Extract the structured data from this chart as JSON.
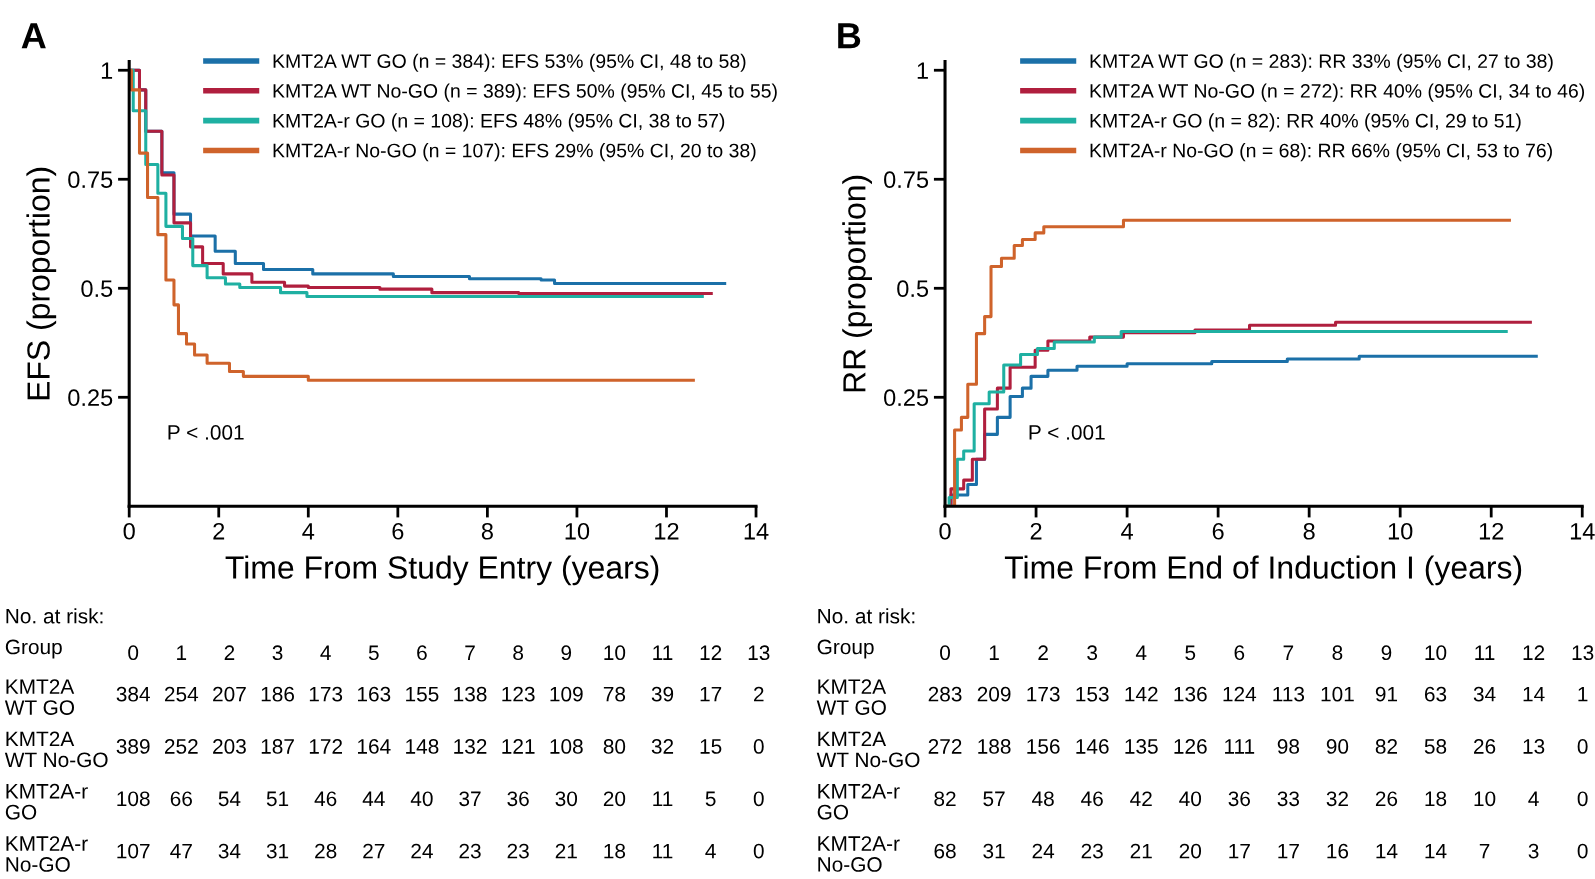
{
  "chart_data": [
    {
      "type": "step",
      "title": "A",
      "xlabel": "Time From Study Entry (years)",
      "ylabel": "EFS (proportion)",
      "xlim": [
        0,
        14
      ],
      "xticks": [
        0,
        2,
        4,
        6,
        8,
        10,
        12,
        14
      ],
      "ylim": [
        0,
        1.02
      ],
      "yticks": [
        0.25,
        0.5,
        0.75,
        1
      ],
      "legend": "top right",
      "grid": false,
      "annotations": [
        "P < .001"
      ],
      "series": [
        {
          "name": "KMT2A WT GO (n = 384): EFS 53% (95% CI, 48 to 58)",
          "color": "#1b70a8",
          "x": [
            0,
            0.23,
            0.37,
            0.73,
            1.0,
            1.37,
            1.92,
            2.37,
            3.0,
            4.1,
            5.9,
            7.6,
            9.2,
            9.5,
            13.3
          ],
          "values": [
            1,
            0.955,
            0.86,
            0.765,
            0.67,
            0.62,
            0.585,
            0.557,
            0.543,
            0.533,
            0.527,
            0.522,
            0.519,
            0.511,
            0.511
          ]
        },
        {
          "name": "KMT2A WT No-GO (n = 389): EFS 50% (95% CI, 45 to 55)",
          "color": "#b01f3e",
          "x": [
            0,
            0.23,
            0.37,
            0.73,
            1.0,
            1.37,
            1.64,
            2.1,
            2.74,
            3.47,
            4.0,
            5.6,
            6.76,
            8.7,
            13.0
          ],
          "values": [
            1,
            0.955,
            0.86,
            0.76,
            0.65,
            0.595,
            0.557,
            0.533,
            0.514,
            0.505,
            0.502,
            0.498,
            0.49,
            0.488,
            0.488
          ]
        },
        {
          "name": "KMT2A-r GO (n = 108): EFS 48% (95% CI, 38 to 57)",
          "color": "#1fb0a2",
          "x": [
            0,
            0.09,
            0.37,
            0.64,
            0.82,
            1.19,
            1.42,
            1.74,
            2.15,
            2.47,
            3.38,
            3.97,
            12.8
          ],
          "values": [
            1,
            0.907,
            0.784,
            0.718,
            0.642,
            0.614,
            0.552,
            0.524,
            0.51,
            0.502,
            0.49,
            0.481,
            0.481
          ]
        },
        {
          "name": "KMT2A-r No-GO (n = 107): EFS 29% (95% CI, 20 to 38)",
          "color": "#cf632b",
          "x": [
            0,
            0.05,
            0.23,
            0.41,
            0.64,
            0.82,
            1.0,
            1.1,
            1.28,
            1.46,
            1.74,
            2.24,
            2.55,
            4.0,
            12.6
          ],
          "values": [
            1,
            0.955,
            0.81,
            0.708,
            0.623,
            0.519,
            0.462,
            0.396,
            0.372,
            0.347,
            0.328,
            0.309,
            0.298,
            0.289,
            0.289
          ]
        }
      ]
    },
    {
      "type": "step",
      "title": "B",
      "xlabel": "Time From End of Induction I (years)",
      "ylabel": "RR (proportion)",
      "xlim": [
        0,
        14
      ],
      "xticks": [
        0,
        2,
        4,
        6,
        8,
        10,
        12,
        14
      ],
      "ylim": [
        0,
        1.02
      ],
      "yticks": [
        0.25,
        0.5,
        0.75,
        1
      ],
      "legend": "top right",
      "grid": false,
      "annotations": [
        "P < .001"
      ],
      "series": [
        {
          "name": "KMT2A WT GO (n = 283): RR 33% (95% CI, 27 to 38)",
          "color": "#1b70a8",
          "x": [
            0,
            0.13,
            0.5,
            0.69,
            0.87,
            1.15,
            1.43,
            1.7,
            1.89,
            2.26,
            2.9,
            4.0,
            5.86,
            7.52,
            9.1,
            12.99
          ],
          "values": [
            0,
            0.026,
            0.05,
            0.108,
            0.165,
            0.204,
            0.252,
            0.271,
            0.298,
            0.312,
            0.321,
            0.327,
            0.332,
            0.338,
            0.344,
            0.344
          ]
        },
        {
          "name": "KMT2A WT No-GO (n = 272): RR 40% (95% CI, 34 to 46)",
          "color": "#b01f3e",
          "x": [
            0,
            0.13,
            0.41,
            0.6,
            0.87,
            1.15,
            1.43,
            1.98,
            2.26,
            3.18,
            3.92,
            5.49,
            6.69,
            8.58,
            12.86
          ],
          "values": [
            0,
            0.04,
            0.06,
            0.108,
            0.223,
            0.271,
            0.319,
            0.358,
            0.379,
            0.388,
            0.398,
            0.404,
            0.415,
            0.422,
            0.422
          ]
        },
        {
          "name": "KMT2A-r GO (n = 82): RR 40% (95% CI, 29 to 51)",
          "color": "#1fb0a2",
          "x": [
            0,
            0.09,
            0.27,
            0.41,
            0.64,
            0.97,
            1.29,
            1.66,
            2.03,
            2.4,
            3.28,
            3.87,
            12.33
          ],
          "values": [
            0,
            0.02,
            0.108,
            0.127,
            0.235,
            0.262,
            0.324,
            0.348,
            0.362,
            0.377,
            0.388,
            0.401,
            0.401
          ]
        },
        {
          "name": "KMT2A-r No-GO (n = 68): RR 66% (95% CI, 53 to 76)",
          "color": "#cf632b",
          "x": [
            0,
            0.09,
            0.21,
            0.36,
            0.5,
            0.69,
            0.87,
            1.01,
            1.24,
            1.52,
            1.7,
            1.98,
            2.17,
            3.92,
            12.4
          ],
          "values": [
            0,
            0,
            0.175,
            0.204,
            0.28,
            0.396,
            0.435,
            0.55,
            0.569,
            0.598,
            0.612,
            0.627,
            0.641,
            0.656,
            0.656
          ]
        }
      ]
    },
    {
      "type": "heatmap",
      "title": "No. at risk:",
      "annotations": [
        "Group"
      ],
      "data_labels": true,
      "categories": [
        "0",
        "1",
        "2",
        "3",
        "4",
        "5",
        "6",
        "7",
        "8",
        "9",
        "10",
        "11",
        "12",
        "13"
      ],
      "y_categories": [
        "KMT2A\nWT GO",
        "KMT2A\nWT No-GO",
        "KMT2A-r\nGO",
        "KMT2A-r\nNo-GO"
      ],
      "cells": [
        [
          384,
          254,
          207,
          186,
          173,
          163,
          155,
          138,
          123,
          109,
          78,
          39,
          17,
          2
        ],
        [
          389,
          252,
          203,
          187,
          172,
          164,
          148,
          132,
          121,
          108,
          80,
          32,
          15,
          0
        ],
        [
          108,
          66,
          54,
          51,
          46,
          44,
          40,
          37,
          36,
          30,
          20,
          11,
          5,
          0
        ],
        [
          107,
          47,
          34,
          31,
          28,
          27,
          24,
          23,
          23,
          21,
          18,
          11,
          4,
          0
        ]
      ]
    },
    {
      "type": "heatmap",
      "title": "No. at risk:",
      "annotations": [
        "Group"
      ],
      "data_labels": true,
      "categories": [
        "0",
        "1",
        "2",
        "3",
        "4",
        "5",
        "6",
        "7",
        "8",
        "9",
        "10",
        "11",
        "12",
        "13"
      ],
      "y_categories": [
        "KMT2A\nWT GO",
        "KMT2A\nWT No-GO",
        "KMT2A-r\nGO",
        "KMT2A-r\nNo-GO"
      ],
      "cells": [
        [
          283,
          209,
          173,
          153,
          142,
          136,
          124,
          113,
          101,
          91,
          63,
          34,
          14,
          1
        ],
        [
          272,
          188,
          156,
          146,
          135,
          126,
          111,
          98,
          90,
          82,
          58,
          26,
          13,
          0
        ],
        [
          82,
          57,
          48,
          46,
          42,
          40,
          36,
          33,
          32,
          26,
          18,
          10,
          4,
          0
        ],
        [
          68,
          31,
          24,
          23,
          21,
          20,
          17,
          17,
          16,
          14,
          14,
          7,
          3,
          0
        ]
      ]
    }
  ]
}
